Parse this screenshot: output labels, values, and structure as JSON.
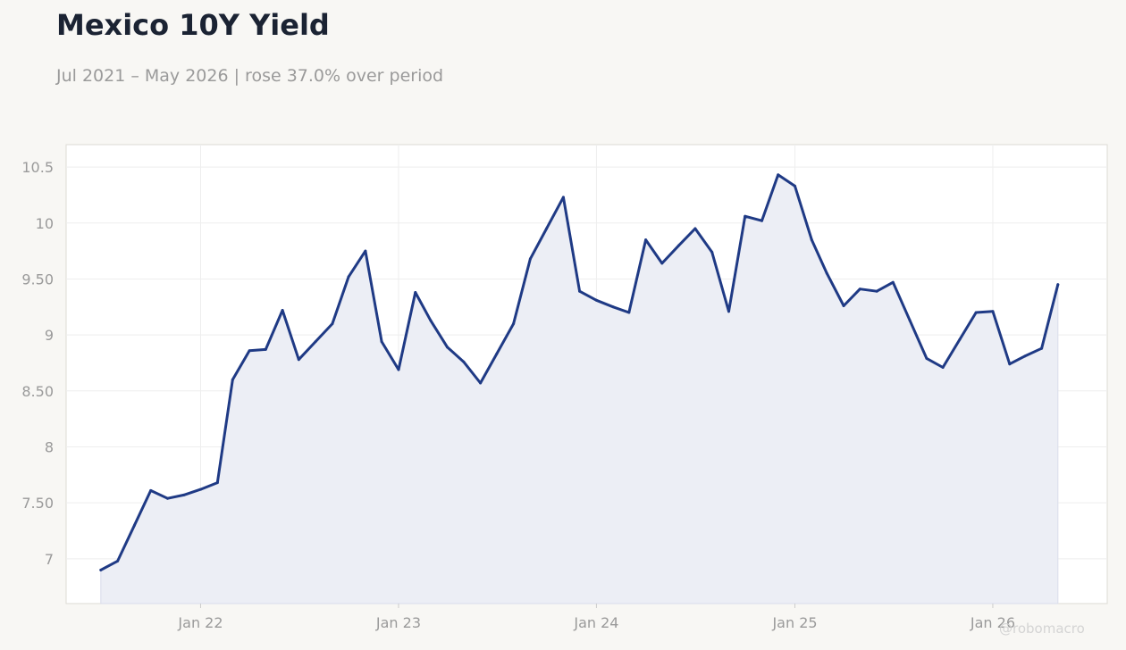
{
  "header": {
    "title": "Mexico 10Y Yield",
    "subtitle": "Jul 2021 – May 2026 | rose 37.0% over period"
  },
  "watermark": "@robomacro",
  "colors": {
    "line": "#1f3a85",
    "area": "#eceef5",
    "plot_bg": "#ffffff",
    "page_bg": "#f8f7f4",
    "grid": "#eeeeee",
    "axis_text": "#9a9a9a",
    "title": "#1b2333"
  },
  "chart_data": {
    "type": "area",
    "title": "Mexico 10Y Yield",
    "subtitle": "Jul 2021 – May 2026 | rose 37.0% over period",
    "xlabel": "",
    "ylabel": "",
    "xlim": [
      "2021-04-28",
      "2026-07-31"
    ],
    "ylim": [
      6.6,
      10.7
    ],
    "grid": true,
    "legend": "none",
    "x_ticks": [
      {
        "date": "2022-01-01",
        "label": "Jan 22"
      },
      {
        "date": "2023-01-01",
        "label": "Jan 23"
      },
      {
        "date": "2024-01-01",
        "label": "Jan 24"
      },
      {
        "date": "2025-01-01",
        "label": "Jan 25"
      },
      {
        "date": "2026-01-01",
        "label": "Jan 26"
      }
    ],
    "y_ticks": [
      {
        "value": 7,
        "label": "7"
      },
      {
        "value": 7.5,
        "label": "7.50"
      },
      {
        "value": 8,
        "label": "8"
      },
      {
        "value": 8.5,
        "label": "8.50"
      },
      {
        "value": 9,
        "label": "9"
      },
      {
        "value": 9.5,
        "label": "9.50"
      },
      {
        "value": 10,
        "label": "10"
      },
      {
        "value": 10.5,
        "label": "10.5"
      }
    ],
    "series": [
      {
        "x": [
          "2021-07-01",
          "2021-08-01",
          "2021-09-01",
          "2021-10-01",
          "2021-11-01",
          "2021-12-01",
          "2022-01-01",
          "2022-02-01",
          "2022-03-01",
          "2022-04-01",
          "2022-05-01",
          "2022-06-01",
          "2022-07-01",
          "2022-08-01",
          "2022-09-01",
          "2022-10-01",
          "2022-11-01",
          "2022-12-01",
          "2023-01-01",
          "2023-02-01",
          "2023-03-01",
          "2023-04-01",
          "2023-05-01",
          "2023-06-01",
          "2023-07-01",
          "2023-08-01",
          "2023-09-01",
          "2023-10-01",
          "2023-11-01",
          "2023-12-01",
          "2024-01-01",
          "2024-02-01",
          "2024-03-01",
          "2024-04-01",
          "2024-05-01",
          "2024-06-01",
          "2024-07-01",
          "2024-08-01",
          "2024-09-01",
          "2024-10-01",
          "2024-11-01",
          "2024-12-01",
          "2025-01-01",
          "2025-02-01",
          "2025-03-01",
          "2025-04-01",
          "2025-05-01",
          "2025-06-01",
          "2025-07-01",
          "2025-08-01",
          "2025-09-01",
          "2025-10-01",
          "2025-11-01",
          "2025-12-01",
          "2026-01-01",
          "2026-02-01",
          "2026-03-01",
          "2026-04-01",
          "2026-05-01"
        ],
        "values": [
          6.9,
          6.98,
          7.3,
          7.61,
          7.54,
          7.57,
          7.62,
          7.68,
          8.6,
          8.86,
          8.87,
          9.22,
          8.78,
          8.94,
          9.1,
          9.52,
          9.75,
          8.94,
          8.69,
          9.38,
          9.13,
          8.89,
          8.76,
          8.57,
          8.83,
          9.1,
          9.68,
          9.95,
          10.23,
          9.39,
          9.31,
          9.25,
          9.2,
          9.85,
          9.64,
          9.8,
          9.95,
          9.74,
          9.21,
          10.06,
          10.02,
          10.43,
          10.33,
          9.85,
          9.55,
          9.26,
          9.41,
          9.39,
          9.47,
          9.13,
          8.79,
          8.71,
          8.96,
          9.2,
          9.21,
          8.74,
          8.81,
          8.88,
          9.45
        ]
      }
    ]
  }
}
